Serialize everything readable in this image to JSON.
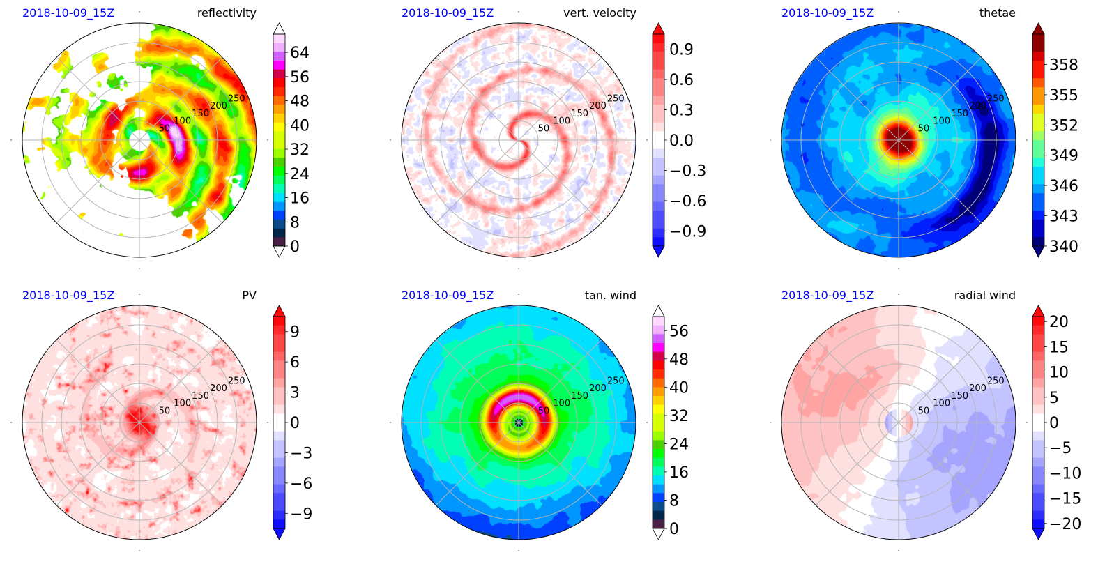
{
  "figure": {
    "panels": [
      {
        "date": "2018-10-09_15Z",
        "variable": "reflectivity"
      },
      {
        "date": "2018-10-09_15Z",
        "variable": "vert. velocity"
      },
      {
        "date": "2018-10-09_15Z",
        "variable": "thetae"
      },
      {
        "date": "2018-10-09_15Z",
        "variable": "PV"
      },
      {
        "date": "2018-10-09_15Z",
        "variable": "tan. wind"
      },
      {
        "date": "2018-10-09_15Z",
        "variable": "radial wind"
      }
    ]
  },
  "chart_data": [
    {
      "type": "heatmap",
      "projection": "polar",
      "title_left": "2018-10-09_15Z",
      "title_right": "reflectivity",
      "radial_ticks": [
        "50",
        "100",
        "150",
        "200",
        "250"
      ],
      "colormap": "nws_reflectivity",
      "colorbar": {
        "ticks": [
          "0",
          "8",
          "16",
          "24",
          "32",
          "40",
          "48",
          "56",
          "64"
        ],
        "range": [
          0,
          70
        ],
        "extend": "both"
      },
      "pattern": "spiral_rainbands_with_gaps"
    },
    {
      "type": "heatmap",
      "projection": "polar",
      "title_left": "2018-10-09_15Z",
      "title_right": "vert. velocity",
      "radial_ticks": [
        "50",
        "100",
        "150",
        "200",
        "250"
      ],
      "colormap": "bwr",
      "colorbar": {
        "ticks": [
          "0.9",
          "0.6",
          "0.3",
          "0.0",
          "−0.3",
          "−0.6",
          "−0.9"
        ],
        "range": [
          -1.05,
          1.05
        ],
        "extend": "both"
      },
      "pattern": "thin_spiral_updrafts"
    },
    {
      "type": "heatmap",
      "projection": "polar",
      "title_left": "2018-10-09_15Z",
      "title_right": "thetae",
      "radial_ticks": [
        "50",
        "100",
        "150",
        "200",
        "250"
      ],
      "colormap": "jet",
      "colorbar": {
        "ticks": [
          "358",
          "355",
          "352",
          "349",
          "346",
          "343",
          "340"
        ],
        "range": [
          340,
          361
        ],
        "extend": "both"
      },
      "pattern": "warm_core_cool_outer"
    },
    {
      "type": "heatmap",
      "projection": "polar",
      "title_left": "2018-10-09_15Z",
      "title_right": "PV",
      "radial_ticks": [
        "50",
        "100",
        "150",
        "200",
        "250"
      ],
      "colormap": "bwr",
      "colorbar": {
        "ticks": [
          "9",
          "6",
          "3",
          "0",
          "−3",
          "−6",
          "−9"
        ],
        "range": [
          -10.5,
          10.5
        ],
        "extend": "both"
      },
      "pattern": "strong_core_scattered_cells"
    },
    {
      "type": "heatmap",
      "projection": "polar",
      "title_left": "2018-10-09_15Z",
      "title_right": "tan. wind",
      "radial_ticks": [
        "50",
        "100",
        "150",
        "200",
        "250"
      ],
      "colormap": "nws_reflectivity",
      "colorbar": {
        "ticks": [
          "0",
          "8",
          "16",
          "24",
          "32",
          "40",
          "48",
          "56"
        ],
        "range": [
          0,
          60
        ],
        "extend": "both"
      },
      "pattern": "wind_max_ring"
    },
    {
      "type": "heatmap",
      "projection": "polar",
      "title_left": "2018-10-09_15Z",
      "title_right": "radial wind",
      "radial_ticks": [
        "50",
        "100",
        "150",
        "200",
        "250"
      ],
      "colormap": "bwr",
      "colorbar": {
        "ticks": [
          "20",
          "15",
          "10",
          "5",
          "0",
          "−5",
          "−10",
          "−15",
          "−20"
        ],
        "range": [
          -21,
          21
        ],
        "extend": "both"
      },
      "pattern": "inflow_outflow_halves"
    }
  ]
}
